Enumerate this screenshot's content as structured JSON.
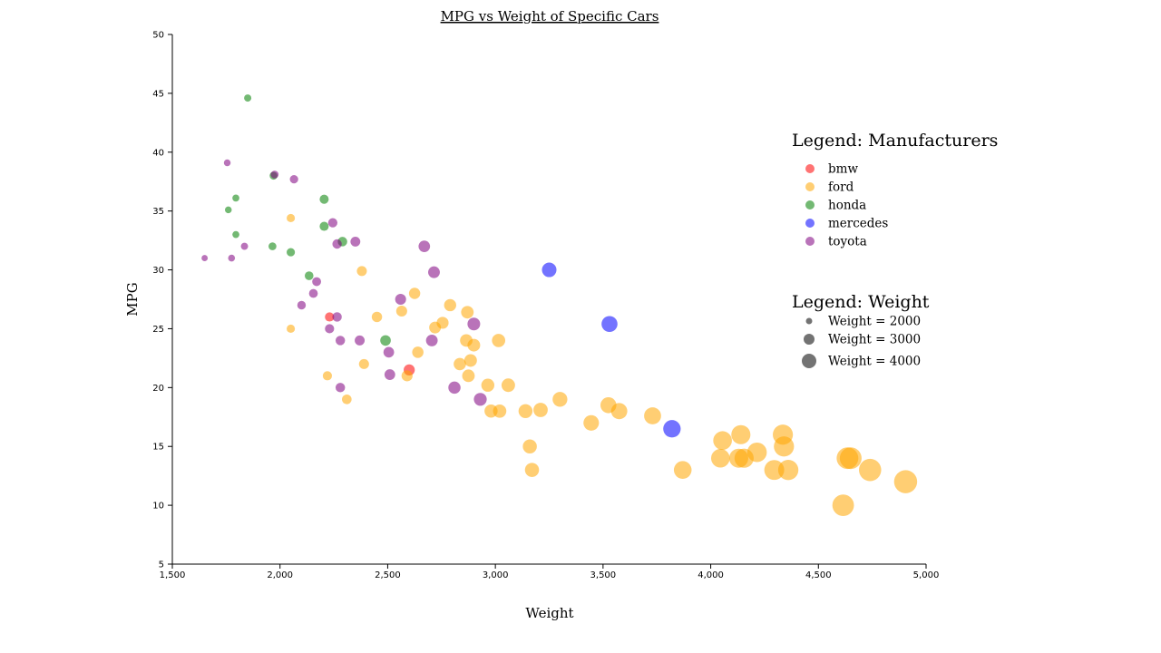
{
  "chart_data": {
    "type": "scatter",
    "title": "MPG vs Weight of Specific Cars",
    "xlabel": "Weight",
    "ylabel": "MPG",
    "xlim": [
      1500,
      5000
    ],
    "ylim": [
      5,
      50
    ],
    "xticks": [
      1500,
      2000,
      2500,
      3000,
      3500,
      4000,
      4500,
      5000
    ],
    "xtick_labels": [
      "1,500",
      "2,000",
      "2,500",
      "3,000",
      "3,500",
      "4,000",
      "4,500",
      "5,000"
    ],
    "yticks": [
      5,
      10,
      15,
      20,
      25,
      30,
      35,
      40,
      45,
      50
    ],
    "ytick_labels": [
      "5",
      "10",
      "15",
      "20",
      "25",
      "30",
      "35",
      "40",
      "45",
      "50"
    ],
    "grid": false,
    "point_size_encoding": "weight",
    "point_opacity": 0.55,
    "legend_placement": "right",
    "legend_manufacturers": {
      "title": "Legend: Manufacturers",
      "items": [
        {
          "name": "bmw",
          "color": "#ff0000"
        },
        {
          "name": "ford",
          "color": "#ffa500"
        },
        {
          "name": "honda",
          "color": "#008000"
        },
        {
          "name": "mercedes",
          "color": "#0000ff"
        },
        {
          "name": "toyota",
          "color": "#800080"
        }
      ]
    },
    "legend_weight": {
      "title": "Legend: Weight",
      "items": [
        {
          "label": "Weight = 2000",
          "weight": 2000
        },
        {
          "label": "Weight = 3000",
          "weight": 3000
        },
        {
          "label": "Weight = 4000",
          "weight": 4000
        }
      ]
    },
    "series": [
      {
        "name": "bmw",
        "color": "#ff0000",
        "points": [
          [
            2230,
            26
          ],
          [
            2600,
            21.5
          ]
        ]
      },
      {
        "name": "ford",
        "color": "#ffa500",
        "points": [
          [
            2050,
            34.4
          ],
          [
            2050,
            25
          ],
          [
            2220,
            21
          ],
          [
            2310,
            19
          ],
          [
            2380,
            29.9
          ],
          [
            2390,
            22
          ],
          [
            2450,
            26
          ],
          [
            2565,
            26.5
          ],
          [
            2590,
            21
          ],
          [
            2625,
            28
          ],
          [
            2640,
            23
          ],
          [
            2720,
            25.1
          ],
          [
            2755,
            25.5
          ],
          [
            2790,
            27
          ],
          [
            2835,
            22
          ],
          [
            2865,
            24
          ],
          [
            2870,
            26.4
          ],
          [
            2875,
            21
          ],
          [
            2885,
            22.3
          ],
          [
            2900,
            23.6
          ],
          [
            2965,
            20.2
          ],
          [
            2980,
            18
          ],
          [
            3015,
            24
          ],
          [
            3020,
            18
          ],
          [
            3060,
            20.2
          ],
          [
            3140,
            18
          ],
          [
            3160,
            15
          ],
          [
            3170,
            13
          ],
          [
            3210,
            18.1
          ],
          [
            3300,
            19
          ],
          [
            3445,
            17
          ],
          [
            3525,
            18.5
          ],
          [
            3575,
            18
          ],
          [
            3730,
            17.6
          ],
          [
            3870,
            13
          ],
          [
            4045,
            14
          ],
          [
            4055,
            15.5
          ],
          [
            4130,
            14
          ],
          [
            4140,
            16
          ],
          [
            4155,
            14
          ],
          [
            4215,
            14.5
          ],
          [
            4295,
            13
          ],
          [
            4335,
            16
          ],
          [
            4340,
            15
          ],
          [
            4360,
            13
          ],
          [
            4615,
            10
          ],
          [
            4635,
            14
          ],
          [
            4650,
            14
          ],
          [
            4740,
            13
          ],
          [
            4905,
            12
          ]
        ]
      },
      {
        "name": "honda",
        "color": "#008000",
        "points": [
          [
            1760,
            35.1
          ],
          [
            1795,
            33
          ],
          [
            1795,
            36.1
          ],
          [
            1850,
            44.6
          ],
          [
            1965,
            32
          ],
          [
            1970,
            38
          ],
          [
            2050,
            31.5
          ],
          [
            2135,
            29.5
          ],
          [
            2205,
            36
          ],
          [
            2205,
            33.7
          ],
          [
            2290,
            32.4
          ],
          [
            2490,
            24
          ]
        ]
      },
      {
        "name": "mercedes",
        "color": "#0000ff",
        "points": [
          [
            3250,
            30
          ],
          [
            3530,
            25.4
          ],
          [
            3820,
            16.5
          ]
        ]
      },
      {
        "name": "toyota",
        "color": "#800080",
        "points": [
          [
            1650,
            31
          ],
          [
            1755,
            39.1
          ],
          [
            1775,
            31
          ],
          [
            1835,
            32
          ],
          [
            1975,
            38.1
          ],
          [
            2065,
            37.7
          ],
          [
            2100,
            27
          ],
          [
            2155,
            28
          ],
          [
            2170,
            29
          ],
          [
            2230,
            25
          ],
          [
            2245,
            34
          ],
          [
            2265,
            32.2
          ],
          [
            2265,
            26
          ],
          [
            2280,
            24
          ],
          [
            2280,
            20
          ],
          [
            2350,
            32.4
          ],
          [
            2370,
            24
          ],
          [
            2505,
            23
          ],
          [
            2510,
            21.1
          ],
          [
            2560,
            27.5
          ],
          [
            2670,
            32
          ],
          [
            2705,
            24
          ],
          [
            2715,
            29.8
          ],
          [
            2810,
            20
          ],
          [
            2900,
            25.4
          ],
          [
            2930,
            19
          ]
        ]
      }
    ]
  }
}
